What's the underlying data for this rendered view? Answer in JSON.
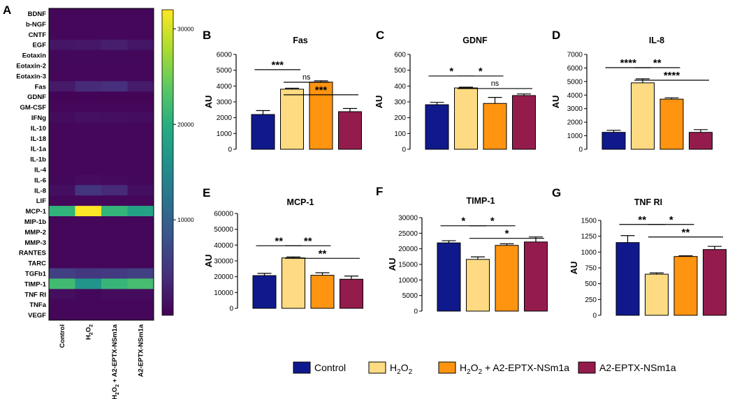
{
  "panel_labels": {
    "A": "A",
    "B": "B",
    "C": "C",
    "D": "D",
    "E": "E",
    "F": "F",
    "G": "G"
  },
  "legend": [
    {
      "name": "Control",
      "color": "#10198c"
    },
    {
      "name": "H2O2",
      "color": "#fedb82"
    },
    {
      "name": "H2O2 + A2-EPTX-NSm1a",
      "color": "#ff9411"
    },
    {
      "name": "A2-EPTX-NSm1a",
      "color": "#941c4c"
    }
  ],
  "chart_data": [
    {
      "type": "heatmap",
      "panel": "A",
      "rows": [
        "BDNF",
        "b-NGF",
        "CNTF",
        "EGF",
        "Eotaxin",
        "Eotaxin-2",
        "Eotaxin-3",
        "Fas",
        "GDNF",
        "GM-CSF",
        "IFNg",
        "IL-10",
        "IL-18",
        "IL-1a",
        "IL-1b",
        "IL-4",
        "IL-6",
        "IL-8",
        "LIF",
        "MCP-1",
        "MIP-1b",
        "MMP-2",
        "MMP-3",
        "RANTES",
        "TARC",
        "TGFb1",
        "TIMP-1",
        "TNF RI",
        "TNFa",
        "VEGF"
      ],
      "columns": [
        "Control",
        "H2O2",
        "H2O2 + A2-EPTX-NSm1a",
        "A2-EPTX-NSm1a"
      ],
      "values": [
        [
          500,
          500,
          500,
          500
        ],
        [
          500,
          500,
          500,
          500
        ],
        [
          500,
          500,
          500,
          500
        ],
        [
          1800,
          2000,
          2600,
          1900
        ],
        [
          600,
          600,
          600,
          600
        ],
        [
          600,
          600,
          600,
          600
        ],
        [
          500,
          500,
          500,
          500
        ],
        [
          2200,
          3800,
          4200,
          2400
        ],
        [
          300,
          400,
          300,
          350
        ],
        [
          500,
          500,
          500,
          500
        ],
        [
          1000,
          1400,
          1200,
          1100
        ],
        [
          500,
          500,
          500,
          500
        ],
        [
          500,
          500,
          500,
          500
        ],
        [
          500,
          500,
          500,
          500
        ],
        [
          500,
          500,
          500,
          500
        ],
        [
          500,
          500,
          500,
          500
        ],
        [
          600,
          900,
          800,
          600
        ],
        [
          1300,
          4900,
          3700,
          1300
        ],
        [
          500,
          500,
          500,
          500
        ],
        [
          20700,
          31900,
          20900,
          18400
        ],
        [
          500,
          500,
          500,
          500
        ],
        [
          500,
          500,
          500,
          500
        ],
        [
          500,
          500,
          500,
          500
        ],
        [
          500,
          500,
          500,
          500
        ],
        [
          500,
          500,
          500,
          500
        ],
        [
          6000,
          5200,
          5400,
          6000
        ],
        [
          21900,
          16600,
          21100,
          22200
        ],
        [
          1150,
          650,
          930,
          1040
        ],
        [
          500,
          500,
          500,
          500
        ],
        [
          500,
          500,
          500,
          500
        ]
      ],
      "colorbar_ticks": [
        10000,
        20000,
        30000
      ],
      "color_range": [
        0,
        32000
      ]
    },
    {
      "type": "bar",
      "panel": "B",
      "title": "Fas",
      "ylabel": "AU",
      "categories": [
        "Control",
        "H2O2",
        "H2O2 + A2-EPTX-NSm1a",
        "A2-EPTX-NSm1a"
      ],
      "values": [
        2200,
        3800,
        4250,
        2380
      ],
      "errors": [
        250,
        60,
        80,
        200
      ],
      "ylim": [
        0,
        6000
      ],
      "yticks": [
        0,
        1000,
        2000,
        3000,
        4000,
        5000,
        6000
      ],
      "significance": [
        {
          "from": 0,
          "to": 1,
          "label": "***",
          "level": 0
        },
        {
          "from": 1,
          "to": 2,
          "label": "ns",
          "level": 1
        },
        {
          "from": 1,
          "to": 3,
          "label": "***",
          "level": 2
        }
      ]
    },
    {
      "type": "bar",
      "panel": "C",
      "title": "GDNF",
      "ylabel": "AU",
      "categories": [
        "Control",
        "H2O2",
        "H2O2 + A2-EPTX-NSm1a",
        "A2-EPTX-NSm1a"
      ],
      "values": [
        282,
        388,
        290,
        340
      ],
      "errors": [
        15,
        5,
        38,
        10
      ],
      "ylim": [
        0,
        600
      ],
      "yticks": [
        0,
        100,
        200,
        300,
        400,
        500,
        600
      ],
      "significance": [
        {
          "from": 0,
          "to": 1,
          "label": "*",
          "level": 0
        },
        {
          "from": 1,
          "to": 2,
          "label": "*",
          "level": 0
        },
        {
          "from": 1,
          "to": 3,
          "label": "ns",
          "level": 1
        }
      ]
    },
    {
      "type": "bar",
      "panel": "D",
      "title": "IL-8",
      "ylabel": "AU",
      "categories": [
        "Control",
        "H2O2",
        "H2O2 + A2-EPTX-NSm1a",
        "A2-EPTX-NSm1a"
      ],
      "values": [
        1250,
        4900,
        3700,
        1250
      ],
      "errors": [
        150,
        300,
        100,
        200
      ],
      "ylim": [
        0,
        7000
      ],
      "yticks": [
        0,
        1000,
        2000,
        3000,
        4000,
        5000,
        6000,
        7000
      ],
      "significance": [
        {
          "from": 0,
          "to": 1,
          "label": "****",
          "level": 0
        },
        {
          "from": 1,
          "to": 2,
          "label": "**",
          "level": 0
        },
        {
          "from": 1,
          "to": 3,
          "label": "****",
          "level": 1
        }
      ]
    },
    {
      "type": "bar",
      "panel": "E",
      "title": "MCP-1",
      "ylabel": "AU",
      "categories": [
        "Control",
        "H2O2",
        "H2O2 + A2-EPTX-NSm1a",
        "A2-EPTX-NSm1a"
      ],
      "values": [
        20700,
        31900,
        20900,
        18400
      ],
      "errors": [
        1400,
        600,
        1600,
        2000
      ],
      "ylim": [
        0,
        60000
      ],
      "yticks": [
        0,
        10000,
        20000,
        30000,
        40000,
        50000,
        60000
      ],
      "significance": [
        {
          "from": 0,
          "to": 1,
          "label": "**",
          "level": 0
        },
        {
          "from": 1,
          "to": 2,
          "label": "**",
          "level": 0
        },
        {
          "from": 1,
          "to": 3,
          "label": "**",
          "level": 1
        }
      ]
    },
    {
      "type": "bar",
      "panel": "F",
      "title": "TIMP-1",
      "ylabel": "AU",
      "categories": [
        "Control",
        "H2O2",
        "H2O2 + A2-EPTX-NSm1a",
        "A2-EPTX-NSm1a"
      ],
      "values": [
        21900,
        16600,
        21100,
        22200
      ],
      "errors": [
        700,
        800,
        500,
        1600
      ],
      "ylim": [
        0,
        30000
      ],
      "yticks": [
        0,
        5000,
        10000,
        15000,
        20000,
        25000,
        30000
      ],
      "significance": [
        {
          "from": 0,
          "to": 1,
          "label": "*",
          "level": 0
        },
        {
          "from": 1,
          "to": 2,
          "label": "*",
          "level": 0
        },
        {
          "from": 1,
          "to": 3,
          "label": "*",
          "level": 1
        }
      ]
    },
    {
      "type": "bar",
      "panel": "G",
      "title": "TNF RI",
      "ylabel": "AU",
      "categories": [
        "Control",
        "H2O2",
        "H2O2 + A2-EPTX-NSm1a",
        "A2-EPTX-NSm1a"
      ],
      "values": [
        1150,
        650,
        930,
        1040
      ],
      "errors": [
        110,
        20,
        10,
        50
      ],
      "ylim": [
        0,
        1500
      ],
      "yticks": [
        0,
        250,
        500,
        750,
        1000,
        1250,
        1500
      ],
      "significance": [
        {
          "from": 0,
          "to": 1,
          "label": "**",
          "level": 0
        },
        {
          "from": 1,
          "to": 2,
          "label": "*",
          "level": 0
        },
        {
          "from": 1,
          "to": 3,
          "label": "**",
          "level": 1
        }
      ]
    }
  ]
}
